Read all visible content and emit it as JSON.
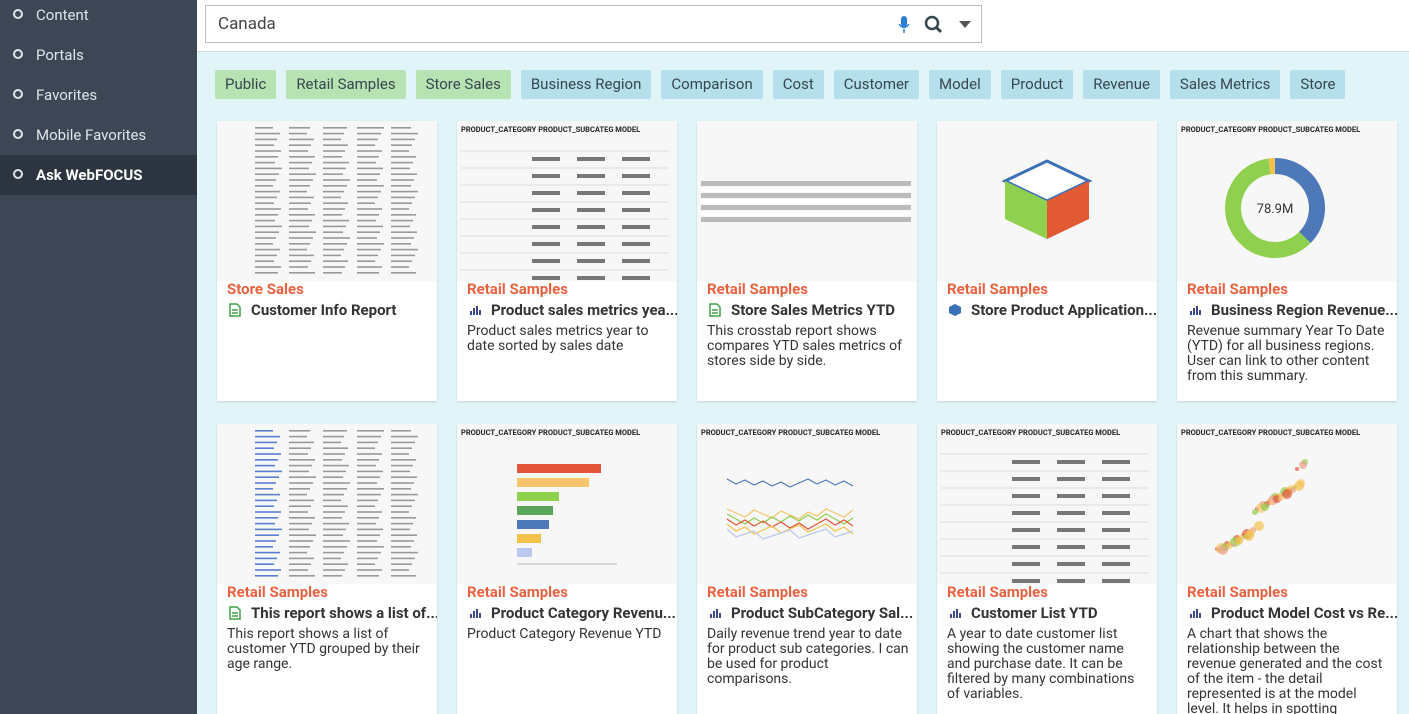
{
  "sidebar": {
    "items": [
      "Content",
      "Portals",
      "Favorites",
      "Mobile Favorites",
      "Ask WebFOCUS"
    ]
  },
  "search": {
    "query": "Canada"
  },
  "tags": {
    "green": [
      "Public",
      "Retail Samples",
      "Store Sales"
    ],
    "blue": [
      "Business Region",
      "Comparison",
      "Cost",
      "Customer",
      "Model",
      "Product",
      "Revenue",
      "Sales Metrics",
      "Store"
    ]
  },
  "cards": [
    {
      "category": "Store Sales",
      "title": "Customer Info Report"
    },
    {
      "category": "Retail Samples",
      "title": "Product sales metrics yea...",
      "description": "Product sales metrics year to date sorted by sales date",
      "thumb_title": "PRODUCT_CATEGORY PRODUCT_SUBCATEG MODEL"
    },
    {
      "category": "Retail Samples",
      "title": "Store Sales Metrics YTD",
      "description": "This crosstab report shows compares YTD sales metrics of stores side by side."
    },
    {
      "category": "Retail Samples",
      "title": "Store Product Application..."
    },
    {
      "category": "Retail Samples",
      "title": "Business Region Revenue...",
      "description": "Revenue summary Year To Date (YTD) for all business regions. User can link to other content from this summary.",
      "thumb_title": "PRODUCT_CATEGORY PRODUCT_SUBCATEG MODEL",
      "thumb_value": "78.9M"
    },
    {
      "category": "Retail Samples",
      "title": "This report shows a list of...",
      "description": "This report shows a list of customer YTD grouped by their age range."
    },
    {
      "category": "Retail Samples",
      "title": "Product Category Revenu...",
      "description": "Product Category Revenue YTD",
      "thumb_title": "PRODUCT_CATEGORY PRODUCT_SUBCATEG MODEL"
    },
    {
      "category": "Retail Samples",
      "title": "Product SubCategory Sal...",
      "description": "Daily revenue trend year to date for product sub categories. I can be used for product comparisons.",
      "thumb_title": "PRODUCT_CATEGORY PRODUCT_SUBCATEG MODEL"
    },
    {
      "category": "Retail Samples",
      "title": "Customer List YTD",
      "description": "A year to date customer list showing the customer name and purchase date. It can be filtered by many combinations of variables.",
      "thumb_title": "PRODUCT_CATEGORY PRODUCT_SUBCATEG MODEL"
    },
    {
      "category": "Retail Samples",
      "title": "Product Model Cost vs Re...",
      "description": "A chart that shows the relationship between the revenue generated and the cost of the item - the detail represented is at the model level. It helps in spotting",
      "thumb_title": "PRODUCT_CATEGORY PRODUCT_SUBCATEG MODEL"
    }
  ]
}
